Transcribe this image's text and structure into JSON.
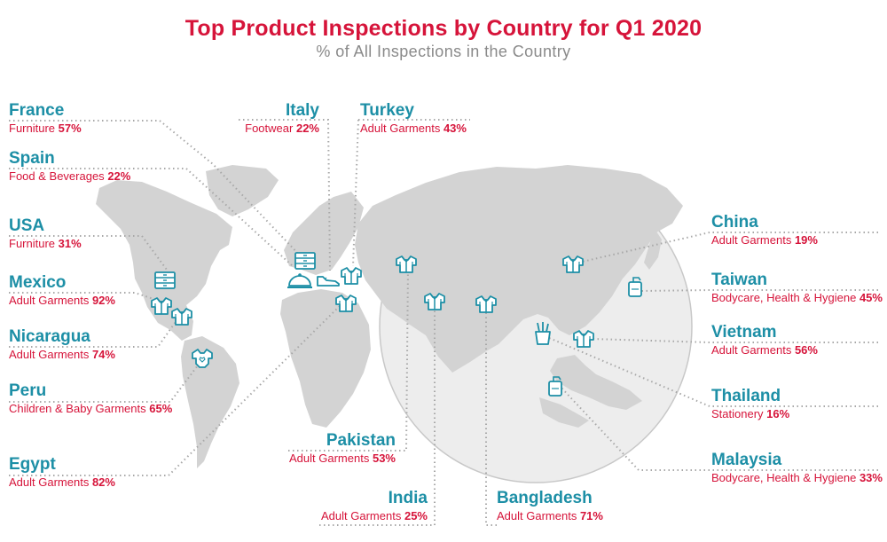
{
  "header": {
    "title": "Top Product Inspections by Country for Q1 2020",
    "subtitle": "% of All Inspections in the Country"
  },
  "colors": {
    "title": "#d6143a",
    "country": "#1d8fa6",
    "detail": "#d6143a",
    "land": "#d3d3d3",
    "leader": "#a8a8a8",
    "icon": "#1d8fa6"
  },
  "icons": {
    "adult-garments": "tshirt-icon",
    "furniture": "dresser-icon",
    "food-beverages": "cloche-icon",
    "footwear": "shoe-icon",
    "children-baby": "onesie-icon",
    "bodycare": "pump-bottle-icon",
    "stationery": "pencil-cup-icon"
  },
  "countries": {
    "france": {
      "name": "France",
      "category": "Furniture",
      "percent": "57%"
    },
    "spain": {
      "name": "Spain",
      "category": "Food & Beverages",
      "percent": "22%"
    },
    "usa": {
      "name": "USA",
      "category": "Furniture",
      "percent": "31%"
    },
    "mexico": {
      "name": "Mexico",
      "category": "Adult Garments",
      "percent": "92%"
    },
    "nicaragua": {
      "name": "Nicaragua",
      "category": "Adult Garments",
      "percent": "74%"
    },
    "peru": {
      "name": "Peru",
      "category": "Children & Baby Garments",
      "percent": "65%"
    },
    "egypt": {
      "name": "Egypt",
      "category": "Adult Garments",
      "percent": "82%"
    },
    "italy": {
      "name": "Italy",
      "category": "Footwear",
      "percent": "22%"
    },
    "turkey": {
      "name": "Turkey",
      "category": "Adult Garments",
      "percent": "43%"
    },
    "pakistan": {
      "name": "Pakistan",
      "category": "Adult Garments",
      "percent": "53%"
    },
    "india": {
      "name": "India",
      "category": "Adult Garments",
      "percent": "25%"
    },
    "bangladesh": {
      "name": "Bangladesh",
      "category": "Adult Garments",
      "percent": "71%"
    },
    "china": {
      "name": "China",
      "category": "Adult Garments",
      "percent": "19%"
    },
    "taiwan": {
      "name": "Taiwan",
      "category": "Bodycare, Health & Hygiene",
      "percent": "45%"
    },
    "vietnam": {
      "name": "Vietnam",
      "category": "Adult Garments",
      "percent": "56%"
    },
    "thailand": {
      "name": "Thailand",
      "category": "Stationery",
      "percent": "16%"
    },
    "malaysia": {
      "name": "Malaysia",
      "category": "Bodycare, Health & Hygiene",
      "percent": "33%"
    }
  }
}
